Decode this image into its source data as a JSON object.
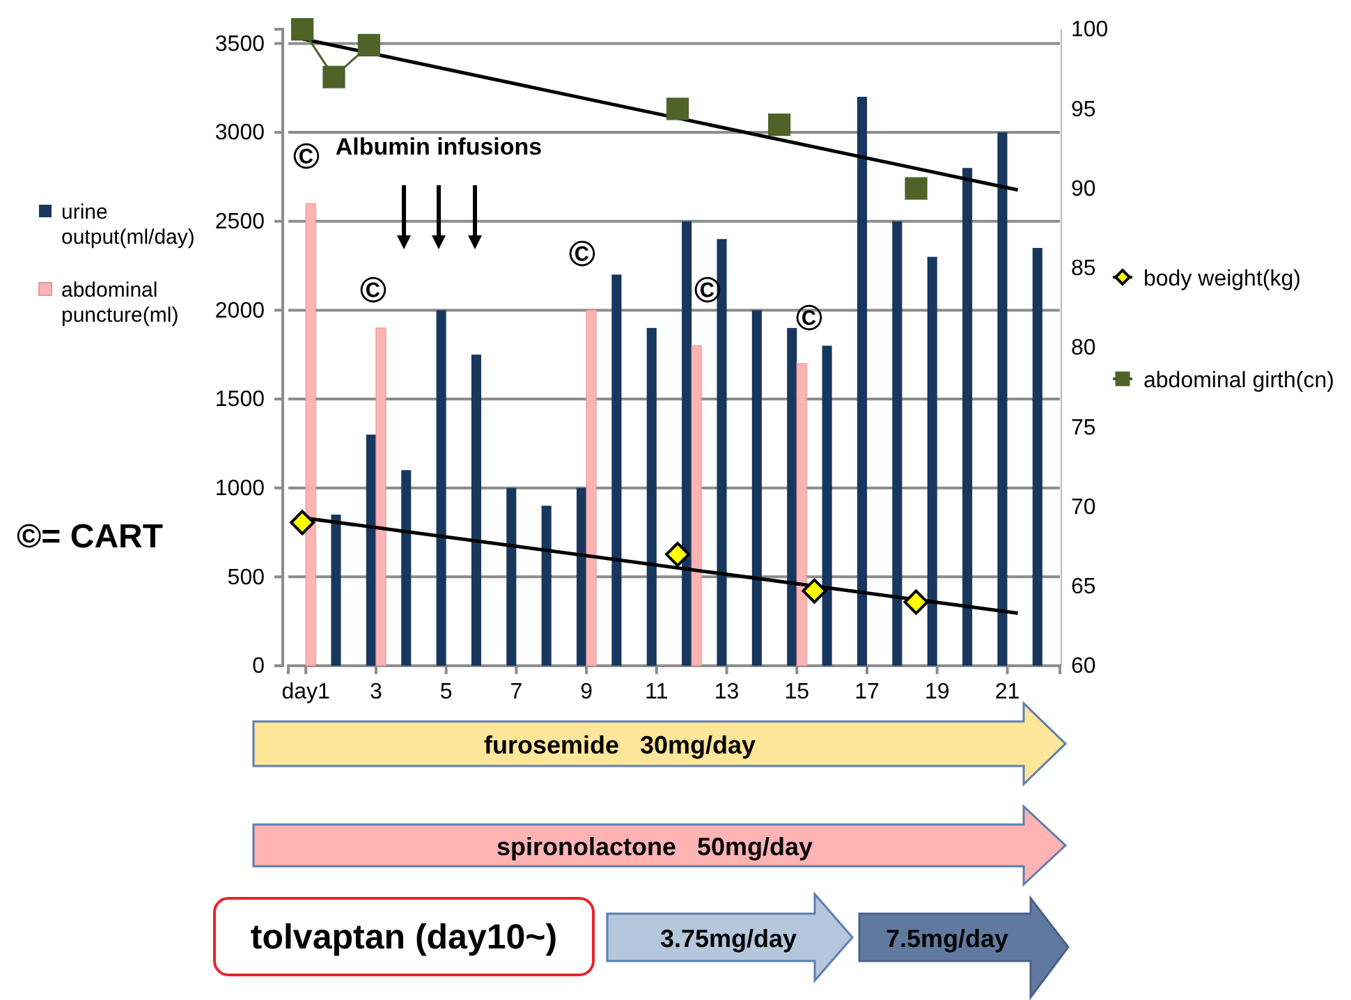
{
  "chart_data": {
    "type": "bar",
    "xlim": [
      0.5,
      22.5
    ],
    "xticks": [
      {
        "value": 1,
        "label": "day1"
      },
      3,
      5,
      7,
      9,
      11,
      13,
      15,
      17,
      19,
      21
    ],
    "ylim": [
      0,
      3580
    ],
    "yticks": [
      0,
      500,
      1000,
      1500,
      2000,
      2500,
      3000,
      3500
    ],
    "y2lim": [
      60,
      100
    ],
    "y2ticks": [
      60,
      65,
      70,
      75,
      80,
      85,
      90,
      95,
      100
    ],
    "grid": "y",
    "legend": "left",
    "series": [
      {
        "name": "urine output(ml/day)",
        "color": "#17375e",
        "x": [
          2,
          3,
          4,
          5,
          6,
          7,
          8,
          9,
          10,
          11,
          12,
          13,
          14,
          15,
          16,
          17,
          18,
          19,
          20,
          21,
          22
        ],
        "values": [
          850,
          1300,
          1100,
          2000,
          1750,
          1000,
          900,
          1000,
          2200,
          1900,
          2500,
          2400,
          2000,
          1900,
          1800,
          3200,
          2500,
          2300,
          2800,
          3000,
          2350
        ]
      },
      {
        "name": "abdominal puncture(ml)",
        "color": "#ffb3b3",
        "x": [
          1,
          3,
          9,
          12,
          15
        ],
        "values": [
          2600,
          1900,
          2000,
          1800,
          1700
        ]
      },
      {
        "name": "body weight(kg)",
        "type": "scatter",
        "axis": "y2",
        "marker": "diamond",
        "color": "#ffff00",
        "x": [
          0.9,
          11.6,
          15.5,
          18.4
        ],
        "values": [
          69,
          67,
          64.7,
          64
        ]
      },
      {
        "name": "abdominal girth(cn)",
        "type": "line",
        "axis": "y2",
        "marker": "square",
        "color": "#4f6228",
        "x": [
          0.9,
          1.8,
          2.8,
          7,
          11.6,
          13,
          14.5,
          16,
          18.4
        ],
        "values": [
          100,
          97,
          99,
          null,
          95,
          null,
          94,
          null,
          90
        ]
      },
      {
        "type": "line",
        "axis": "y2",
        "marker": "none",
        "color": "#000000",
        "x": [
          0.9,
          21.3
        ],
        "values": [
          99.4,
          89.9
        ]
      },
      {
        "type": "line",
        "axis": "y2",
        "marker": "none",
        "color": "#000000",
        "x": [
          0.9,
          21.3
        ],
        "values": [
          69.3,
          63.3
        ]
      }
    ],
    "annotations": [
      "©= CART",
      "Albumin infusions",
      "©",
      "©",
      "©",
      "©",
      "©",
      "furosemide   30mg/day",
      "spironolactone   50mg/day",
      "tolvaptan (day10~)",
      "3.75mg/day",
      "7.5mg/day"
    ]
  }
}
